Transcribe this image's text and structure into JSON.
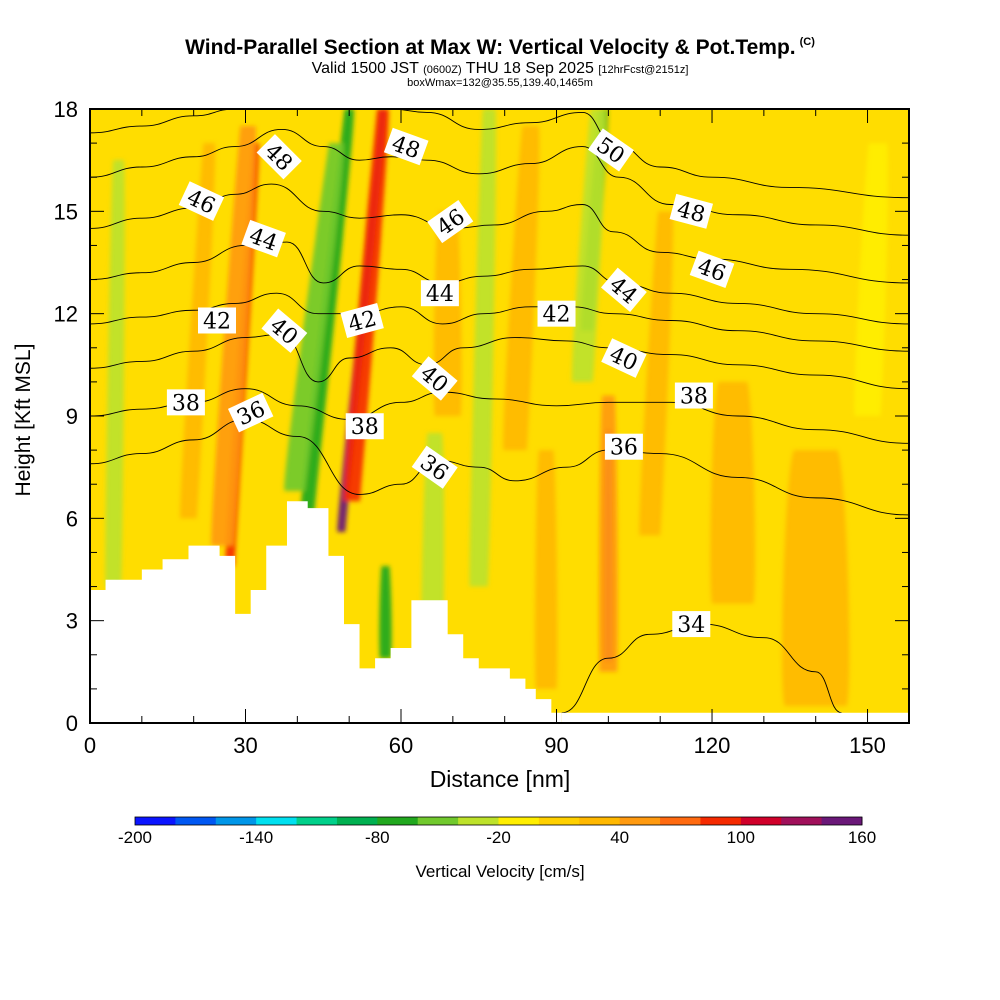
{
  "chart_data": {
    "type": "heatmap",
    "title": "Wind-Parallel Section at Max W: Vertical Velocity & Pot.Temp.",
    "title_mark": "(C)",
    "subtitle_main_a": "Valid 1500 JST",
    "subtitle_small_a": "(0600Z)",
    "subtitle_main_b": "THU 18 Sep 2025",
    "subtitle_small_b": "[12hrFcst@2151z]",
    "subtitle2": "boxWmax=132@35.55,139.40,1465m",
    "xlabel": "Distance [nm]",
    "ylabel": "Height [Kft MSL]",
    "xlim": [
      0,
      158
    ],
    "ylim": [
      0,
      18
    ],
    "x_ticks": [
      "0",
      "30",
      "60",
      "90",
      "120",
      "150"
    ],
    "x_tick_values": [
      0,
      30,
      60,
      90,
      120,
      150
    ],
    "y_ticks": [
      "0",
      "3",
      "6",
      "9",
      "12",
      "15",
      "18"
    ],
    "y_tick_values": [
      0,
      3,
      6,
      9,
      12,
      15,
      18
    ],
    "colorbar": {
      "label": "Vertical Velocity [cm/s]",
      "range": [
        -200,
        160
      ],
      "tick_labels": [
        "-200",
        "-140",
        "-80",
        "-20",
        "40",
        "100",
        "160"
      ],
      "tick_values": [
        -200,
        -140,
        -80,
        -20,
        40,
        100,
        160
      ],
      "colors": [
        "#0a14ff",
        "#0057f2",
        "#0096e8",
        "#00e0f0",
        "#00d08a",
        "#00b050",
        "#21a81e",
        "#71c92d",
        "#bde22a",
        "#ffee00",
        "#ffd000",
        "#ffb800",
        "#ff9a10",
        "#ff6a10",
        "#f52a00",
        "#d0002a",
        "#a0105a",
        "#6a1878"
      ]
    },
    "terrain_kft": [
      [
        0,
        3.9
      ],
      [
        3,
        3.9
      ],
      [
        3,
        4.2
      ],
      [
        10,
        4.2
      ],
      [
        10,
        4.5
      ],
      [
        14,
        4.5
      ],
      [
        14,
        4.8
      ],
      [
        19,
        4.8
      ],
      [
        19,
        5.2
      ],
      [
        25,
        5.2
      ],
      [
        25,
        4.9
      ],
      [
        28,
        4.9
      ],
      [
        28,
        3.2
      ],
      [
        31,
        3.2
      ],
      [
        31,
        3.9
      ],
      [
        34,
        3.9
      ],
      [
        34,
        5.2
      ],
      [
        38,
        5.2
      ],
      [
        38,
        6.5
      ],
      [
        42,
        6.5
      ],
      [
        42,
        6.3
      ],
      [
        46,
        6.3
      ],
      [
        46,
        4.9
      ],
      [
        49,
        4.9
      ],
      [
        49,
        2.9
      ],
      [
        52,
        2.9
      ],
      [
        52,
        1.6
      ],
      [
        55,
        1.6
      ],
      [
        55,
        1.9
      ],
      [
        58,
        1.9
      ],
      [
        58,
        2.2
      ],
      [
        62,
        2.2
      ],
      [
        62,
        3.6
      ],
      [
        69,
        3.6
      ],
      [
        69,
        2.6
      ],
      [
        72,
        2.6
      ],
      [
        72,
        1.9
      ],
      [
        75,
        1.9
      ],
      [
        75,
        1.6
      ],
      [
        81,
        1.6
      ],
      [
        81,
        1.3
      ],
      [
        84,
        1.3
      ],
      [
        84,
        1.0
      ],
      [
        86,
        1.0
      ],
      [
        86,
        0.7
      ],
      [
        89,
        0.7
      ],
      [
        89,
        0.3
      ],
      [
        91,
        0.3
      ],
      [
        91,
        0.0
      ]
    ],
    "w_features": [
      {
        "x": 48.5,
        "w": 1.6,
        "ytop": 18.0,
        "ybot": 5.6,
        "lean": 8.0,
        "val": 160
      },
      {
        "x": 50.5,
        "w": 3.2,
        "ytop": 18.0,
        "ybot": 6.5,
        "lean": 6.0,
        "val": 95
      },
      {
        "x": 42.0,
        "w": 2.6,
        "ytop": 18.0,
        "ybot": 6.2,
        "lean": 8.0,
        "val": -80
      },
      {
        "x": 39.5,
        "w": 4.0,
        "ytop": 17.0,
        "ybot": 6.8,
        "lean": 8.0,
        "val": -45
      },
      {
        "x": 27.0,
        "w": 1.8,
        "ytop": 17.0,
        "ybot": 4.6,
        "lean": 5.0,
        "val": 85
      },
      {
        "x": 25.5,
        "w": 4.2,
        "ytop": 17.5,
        "ybot": 5.2,
        "lean": 5.0,
        "val": 45
      },
      {
        "x": 19.0,
        "w": 3.2,
        "ytop": 17.0,
        "ybot": 6.0,
        "lean": 4.0,
        "val": 30
      },
      {
        "x": 4.5,
        "w": 3.0,
        "ytop": 16.5,
        "ybot": 4.0,
        "lean": 1.0,
        "val": -30
      },
      {
        "x": 100.0,
        "w": 1.5,
        "ytop": 8.6,
        "ybot": 1.8,
        "lean": 0.0,
        "val": 110
      },
      {
        "x": 100.0,
        "w": 3.4,
        "ytop": 9.6,
        "ybot": 1.5,
        "lean": 0.0,
        "val": 55
      },
      {
        "x": 96.0,
        "w": 2.5,
        "ytop": 18.0,
        "ybot": 11.5,
        "lean": 3.0,
        "val": -65
      },
      {
        "x": 95.0,
        "w": 4.0,
        "ytop": 18.0,
        "ybot": 10.0,
        "lean": 3.0,
        "val": -30
      },
      {
        "x": 66.0,
        "w": 4.0,
        "ytop": 8.5,
        "ybot": 2.2,
        "lean": 0.5,
        "val": -40
      },
      {
        "x": 57.0,
        "w": 2.2,
        "ytop": 4.6,
        "ybot": 1.9,
        "lean": 0.0,
        "val": -75
      },
      {
        "x": 69.0,
        "w": 5.0,
        "ytop": 15.0,
        "ybot": 9.0,
        "lean": 0.0,
        "val": 35
      },
      {
        "x": 75.0,
        "w": 3.5,
        "ytop": 18.0,
        "ybot": 4.0,
        "lean": 2.0,
        "val": -25
      },
      {
        "x": 82.0,
        "w": 4.5,
        "ytop": 17.5,
        "ybot": 8.0,
        "lean": 3.0,
        "val": 30
      },
      {
        "x": 88.0,
        "w": 4.0,
        "ytop": 8.0,
        "ybot": 1.0,
        "lean": 0.0,
        "val": 30
      },
      {
        "x": 108.0,
        "w": 4.0,
        "ytop": 15.0,
        "ybot": 5.5,
        "lean": 3.0,
        "val": 30
      },
      {
        "x": 140.0,
        "w": 12.0,
        "ytop": 8.0,
        "ybot": 0.5,
        "lean": 0.0,
        "val": 22
      },
      {
        "x": 150.0,
        "w": 5.0,
        "ytop": 17.0,
        "ybot": 9.0,
        "lean": 2.0,
        "val": -20
      },
      {
        "x": 124.0,
        "w": 8.0,
        "ytop": 10.0,
        "ybot": 3.5,
        "lean": 0.0,
        "val": 20
      }
    ],
    "theta_contours": [
      {
        "value": 34,
        "label": "34",
        "points": [
          [
            91,
            0.3
          ],
          [
            100,
            1.9
          ],
          [
            108,
            2.6
          ],
          [
            118,
            2.9
          ],
          [
            130,
            2.5
          ],
          [
            140,
            1.5
          ],
          [
            145,
            0.3
          ]
        ]
      },
      {
        "value": 36,
        "label": "36",
        "points": [
          [
            0,
            7.6
          ],
          [
            10,
            7.9
          ],
          [
            20,
            8.3
          ],
          [
            30,
            8.9
          ],
          [
            40,
            8.4
          ],
          [
            52,
            6.7
          ],
          [
            60,
            7.0
          ],
          [
            67,
            7.7
          ],
          [
            75,
            7.5
          ],
          [
            82,
            7.1
          ],
          [
            92,
            7.5
          ],
          [
            100,
            8.0
          ],
          [
            110,
            7.9
          ],
          [
            125,
            7.2
          ],
          [
            140,
            6.6
          ],
          [
            158,
            6.1
          ]
        ]
      },
      {
        "value": 38,
        "label": "38",
        "points": [
          [
            0,
            9.0
          ],
          [
            10,
            9.2
          ],
          [
            20,
            9.4
          ],
          [
            30,
            9.8
          ],
          [
            40,
            9.3
          ],
          [
            50,
            8.9
          ],
          [
            60,
            9.4
          ],
          [
            68,
            9.7
          ],
          [
            78,
            9.5
          ],
          [
            90,
            9.3
          ],
          [
            100,
            9.4
          ],
          [
            112,
            9.4
          ],
          [
            125,
            9.0
          ],
          [
            140,
            8.6
          ],
          [
            158,
            8.2
          ]
        ]
      },
      {
        "value": 40,
        "label": "40",
        "points": [
          [
            0,
            10.4
          ],
          [
            10,
            10.6
          ],
          [
            20,
            10.9
          ],
          [
            30,
            11.3
          ],
          [
            37,
            11.4
          ],
          [
            44,
            10.0
          ],
          [
            50,
            10.7
          ],
          [
            58,
            11.0
          ],
          [
            65,
            10.5
          ],
          [
            72,
            11.0
          ],
          [
            82,
            11.3
          ],
          [
            92,
            11.2
          ],
          [
            100,
            11.0
          ],
          [
            112,
            10.8
          ],
          [
            125,
            10.5
          ],
          [
            140,
            10.2
          ],
          [
            158,
            9.8
          ]
        ]
      },
      {
        "value": 42,
        "label": "42",
        "points": [
          [
            0,
            11.7
          ],
          [
            10,
            11.9
          ],
          [
            20,
            12.1
          ],
          [
            28,
            12.3
          ],
          [
            36,
            12.6
          ],
          [
            44,
            12.0
          ],
          [
            52,
            12.0
          ],
          [
            60,
            12.2
          ],
          [
            68,
            11.7
          ],
          [
            76,
            12.0
          ],
          [
            85,
            12.2
          ],
          [
            93,
            12.2
          ],
          [
            101,
            12.0
          ],
          [
            112,
            11.8
          ],
          [
            125,
            11.5
          ],
          [
            140,
            11.2
          ],
          [
            158,
            10.9
          ]
        ]
      },
      {
        "value": 44,
        "label": "44",
        "points": [
          [
            0,
            13.0
          ],
          [
            10,
            13.2
          ],
          [
            20,
            13.5
          ],
          [
            30,
            14.0
          ],
          [
            38,
            14.1
          ],
          [
            45,
            12.9
          ],
          [
            52,
            13.4
          ],
          [
            60,
            13.3
          ],
          [
            68,
            12.9
          ],
          [
            76,
            13.1
          ],
          [
            85,
            13.3
          ],
          [
            95,
            13.4
          ],
          [
            102,
            12.9
          ],
          [
            112,
            12.6
          ],
          [
            125,
            12.3
          ],
          [
            140,
            12.0
          ],
          [
            158,
            11.7
          ]
        ]
      },
      {
        "value": 46,
        "label": "46",
        "points": [
          [
            0,
            14.5
          ],
          [
            10,
            14.8
          ],
          [
            20,
            15.1
          ],
          [
            28,
            15.5
          ],
          [
            35,
            15.8
          ],
          [
            45,
            15.0
          ],
          [
            52,
            14.8
          ],
          [
            60,
            14.9
          ],
          [
            70,
            14.5
          ],
          [
            78,
            14.6
          ],
          [
            88,
            15.0
          ],
          [
            95,
            15.2
          ],
          [
            101,
            14.4
          ],
          [
            110,
            13.8
          ],
          [
            120,
            13.6
          ],
          [
            135,
            13.3
          ],
          [
            158,
            12.9
          ]
        ]
      },
      {
        "value": 48,
        "label": "48",
        "points": [
          [
            0,
            16.0
          ],
          [
            10,
            16.3
          ],
          [
            20,
            16.6
          ],
          [
            28,
            16.9
          ],
          [
            37,
            17.4
          ],
          [
            45,
            16.9
          ],
          [
            52,
            16.5
          ],
          [
            58,
            16.6
          ],
          [
            65,
            16.5
          ],
          [
            75,
            16.1
          ],
          [
            85,
            16.4
          ],
          [
            95,
            16.9
          ],
          [
            102,
            16.0
          ],
          [
            112,
            15.2
          ],
          [
            125,
            14.9
          ],
          [
            140,
            14.6
          ],
          [
            158,
            14.3
          ]
        ]
      },
      {
        "value": 50,
        "label": "50",
        "points": [
          [
            0,
            17.3
          ],
          [
            10,
            17.5
          ],
          [
            20,
            17.8
          ],
          [
            28,
            18.0
          ],
          [
            58,
            18.0
          ],
          [
            65,
            17.9
          ],
          [
            75,
            17.4
          ],
          [
            85,
            17.6
          ],
          [
            95,
            17.9
          ],
          [
            101,
            17.0
          ],
          [
            110,
            16.3
          ],
          [
            120,
            16.0
          ],
          [
            135,
            15.7
          ],
          [
            158,
            15.4
          ]
        ]
      }
    ],
    "contour_labels": [
      {
        "text": "48",
        "x": 36.5,
        "y": 16.6,
        "angle": 45
      },
      {
        "text": "46",
        "x": 21.5,
        "y": 15.3,
        "angle": 25
      },
      {
        "text": "44",
        "x": 33.5,
        "y": 14.2,
        "angle": 20
      },
      {
        "text": "42",
        "x": 24.5,
        "y": 11.8,
        "angle": 0
      },
      {
        "text": "40",
        "x": 37.5,
        "y": 11.5,
        "angle": 40
      },
      {
        "text": "38",
        "x": 18.5,
        "y": 9.4,
        "angle": 0
      },
      {
        "text": "36",
        "x": 31.0,
        "y": 9.1,
        "angle": -25
      },
      {
        "text": "48",
        "x": 61.0,
        "y": 16.9,
        "angle": 20
      },
      {
        "text": "46",
        "x": 69.5,
        "y": 14.7,
        "angle": -35
      },
      {
        "text": "44",
        "x": 67.5,
        "y": 12.6,
        "angle": 0
      },
      {
        "text": "42",
        "x": 52.5,
        "y": 11.8,
        "angle": -15
      },
      {
        "text": "40",
        "x": 66.5,
        "y": 10.1,
        "angle": 40
      },
      {
        "text": "38",
        "x": 53.0,
        "y": 8.7,
        "angle": 0
      },
      {
        "text": "36",
        "x": 66.5,
        "y": 7.5,
        "angle": 35
      },
      {
        "text": "50",
        "x": 100.5,
        "y": 16.8,
        "angle": 35
      },
      {
        "text": "48",
        "x": 116.0,
        "y": 15.0,
        "angle": 15
      },
      {
        "text": "46",
        "x": 120.0,
        "y": 13.3,
        "angle": 20
      },
      {
        "text": "44",
        "x": 103.0,
        "y": 12.7,
        "angle": 40
      },
      {
        "text": "42",
        "x": 90.0,
        "y": 12.0,
        "angle": 0
      },
      {
        "text": "40",
        "x": 103.0,
        "y": 10.7,
        "angle": 25
      },
      {
        "text": "38",
        "x": 116.5,
        "y": 9.6,
        "angle": 0
      },
      {
        "text": "36",
        "x": 103.0,
        "y": 8.1,
        "angle": 0
      },
      {
        "text": "34",
        "x": 116.0,
        "y": 2.9,
        "angle": 0
      }
    ]
  }
}
